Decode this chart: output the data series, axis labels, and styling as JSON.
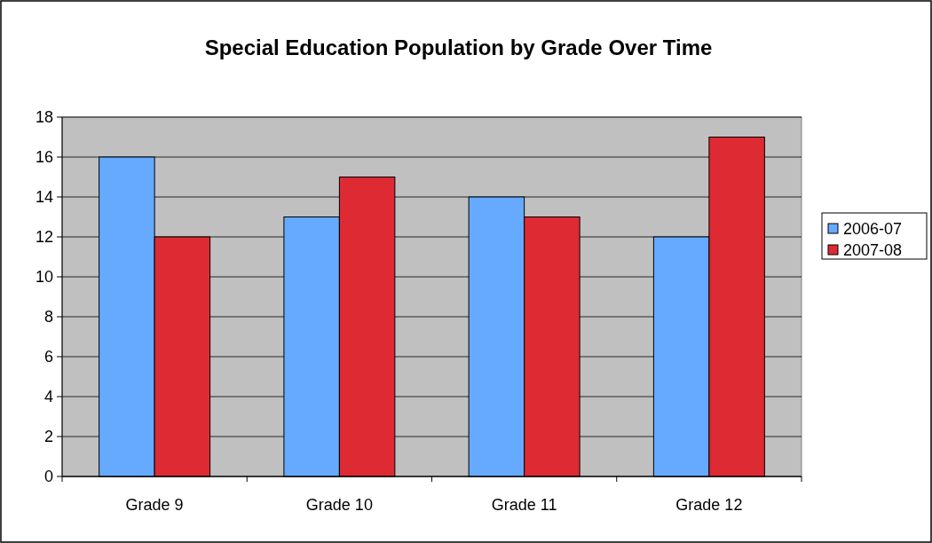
{
  "chart_data": {
    "type": "bar",
    "title": "Special Education Population by Grade Over Time",
    "categories": [
      "Grade 9",
      "Grade 10",
      "Grade 11",
      "Grade 12"
    ],
    "series": [
      {
        "name": "2006-07",
        "color": "#66aaff",
        "values": [
          16,
          13,
          14,
          12
        ]
      },
      {
        "name": "2007-08",
        "color": "#dd2a33",
        "values": [
          12,
          15,
          13,
          17
        ]
      }
    ],
    "ylim": [
      0,
      18
    ],
    "yticks": [
      0,
      2,
      4,
      6,
      8,
      10,
      12,
      14,
      16,
      18
    ],
    "grid": "y",
    "legend": "right"
  }
}
